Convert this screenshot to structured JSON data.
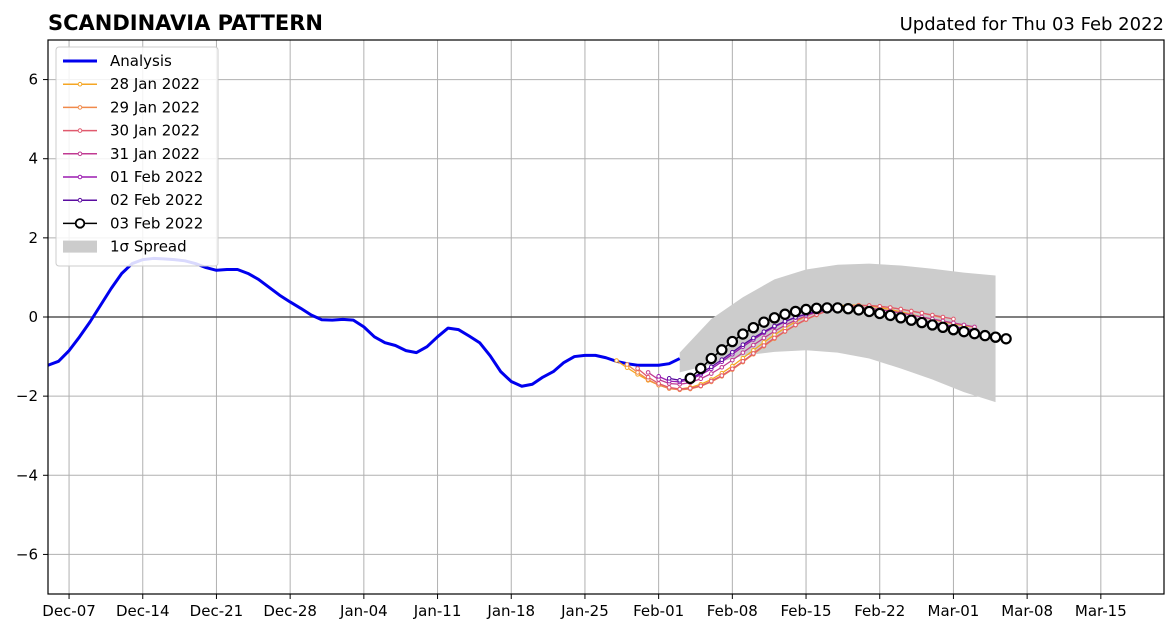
{
  "chart_data": {
    "type": "line",
    "title": "SCANDINAVIA PATTERN",
    "subtitle": "Updated for Thu 03 Feb 2022",
    "xlabel": "",
    "ylabel": "",
    "x_start": "2021-12-05",
    "x_end": "2022-03-21",
    "ylim": [
      -7,
      7
    ],
    "yticks": [
      -6,
      -4,
      -2,
      0,
      2,
      4,
      6
    ],
    "ytick_labels": [
      "−6",
      "−4",
      "−2",
      "0",
      "2",
      "4",
      "6"
    ],
    "xticks": [
      "2021-12-07",
      "2021-12-14",
      "2021-12-21",
      "2021-12-28",
      "2022-01-04",
      "2022-01-11",
      "2022-01-18",
      "2022-01-25",
      "2022-02-01",
      "2022-02-08",
      "2022-02-15",
      "2022-02-22",
      "2022-03-01",
      "2022-03-08",
      "2022-03-15"
    ],
    "xtick_labels": [
      "Dec-07",
      "Dec-14",
      "Dec-21",
      "Dec-28",
      "Jan-04",
      "Jan-11",
      "Jan-18",
      "Jan-25",
      "Feb-01",
      "Feb-08",
      "Feb-15",
      "Feb-22",
      "Mar-01",
      "Mar-08",
      "Mar-15"
    ],
    "grid": true,
    "legend_position": "top-left",
    "analysis": {
      "name": "Analysis",
      "color": "#0000ee",
      "x": [
        "2021-12-05",
        "2021-12-06",
        "2021-12-07",
        "2021-12-08",
        "2021-12-09",
        "2021-12-10",
        "2021-12-11",
        "2021-12-12",
        "2021-12-13",
        "2021-12-14",
        "2021-12-15",
        "2021-12-16",
        "2021-12-17",
        "2021-12-18",
        "2021-12-19",
        "2021-12-20",
        "2021-12-21",
        "2021-12-22",
        "2021-12-23",
        "2021-12-24",
        "2021-12-25",
        "2021-12-26",
        "2021-12-27",
        "2021-12-28",
        "2021-12-29",
        "2021-12-30",
        "2021-12-31",
        "2022-01-01",
        "2022-01-02",
        "2022-01-03",
        "2022-01-04",
        "2022-01-05",
        "2022-01-06",
        "2022-01-07",
        "2022-01-08",
        "2022-01-09",
        "2022-01-10",
        "2022-01-11",
        "2022-01-12",
        "2022-01-13",
        "2022-01-14",
        "2022-01-15",
        "2022-01-16",
        "2022-01-17",
        "2022-01-18",
        "2022-01-19",
        "2022-01-20",
        "2022-01-21",
        "2022-01-22",
        "2022-01-23",
        "2022-01-24",
        "2022-01-25",
        "2022-01-26",
        "2022-01-27",
        "2022-01-28",
        "2022-01-29",
        "2022-01-30",
        "2022-01-31",
        "2022-02-01",
        "2022-02-02",
        "2022-02-03"
      ],
      "values": [
        -1.22,
        -1.12,
        -0.85,
        -0.5,
        -0.12,
        0.3,
        0.72,
        1.1,
        1.35,
        1.45,
        1.48,
        1.47,
        1.45,
        1.42,
        1.35,
        1.25,
        1.18,
        1.2,
        1.2,
        1.1,
        0.95,
        0.75,
        0.55,
        0.38,
        0.22,
        0.05,
        -0.07,
        -0.08,
        -0.06,
        -0.08,
        -0.25,
        -0.5,
        -0.65,
        -0.72,
        -0.85,
        -0.9,
        -0.75,
        -0.5,
        -0.28,
        -0.32,
        -0.48,
        -0.65,
        -0.98,
        -1.38,
        -1.63,
        -1.75,
        -1.7,
        -1.52,
        -1.38,
        -1.15,
        -1.0,
        -0.97,
        -0.97,
        -1.03,
        -1.12,
        -1.18,
        -1.22,
        -1.22,
        -1.22,
        -1.18,
        -1.05
      ]
    },
    "spread": {
      "name": "1σ Spread",
      "x": [
        "2022-02-03",
        "2022-02-06",
        "2022-02-09",
        "2022-02-12",
        "2022-02-15",
        "2022-02-18",
        "2022-02-21",
        "2022-02-24",
        "2022-02-27",
        "2022-03-02",
        "2022-03-05"
      ],
      "upper": [
        -0.9,
        -0.05,
        0.5,
        0.95,
        1.2,
        1.32,
        1.35,
        1.3,
        1.22,
        1.12,
        1.05
      ],
      "lower": [
        -1.4,
        -1.2,
        -0.98,
        -0.88,
        -0.84,
        -0.9,
        -1.05,
        -1.3,
        -1.58,
        -1.9,
        -2.15
      ]
    },
    "series": [
      {
        "name": "28 Jan 2022",
        "color": "#f5a623",
        "start": "2022-01-28",
        "values": [
          -1.1,
          -1.28,
          -1.45,
          -1.6,
          -1.72,
          -1.8,
          -1.82,
          -1.78,
          -1.7,
          -1.58,
          -1.42,
          -1.24,
          -1.04,
          -0.84,
          -0.64,
          -0.45,
          -0.28,
          -0.12,
          0.02,
          0.13,
          0.22,
          0.28,
          0.3,
          0.3,
          0.28,
          0.24,
          0.19,
          0.13,
          0.07,
          0.0,
          -0.06,
          -0.12,
          -0.17,
          -0.22,
          -0.26
        ]
      },
      {
        "name": "29 Jan 2022",
        "color": "#f08a4b",
        "start": "2022-01-29",
        "values": [
          -1.2,
          -1.4,
          -1.58,
          -1.72,
          -1.81,
          -1.84,
          -1.82,
          -1.75,
          -1.64,
          -1.5,
          -1.33,
          -1.14,
          -0.94,
          -0.74,
          -0.55,
          -0.37,
          -0.21,
          -0.07,
          0.05,
          0.15,
          0.22,
          0.27,
          0.29,
          0.29,
          0.27,
          0.24,
          0.2,
          0.15,
          0.1,
          0.04,
          -0.02
        ]
      },
      {
        "name": "30 Jan 2022",
        "color": "#e05a6e",
        "start": "2022-01-30",
        "values": [
          -1.3,
          -1.52,
          -1.68,
          -1.78,
          -1.82,
          -1.8,
          -1.74,
          -1.62,
          -1.48,
          -1.31,
          -1.12,
          -0.92,
          -0.72,
          -0.53,
          -0.36,
          -0.2,
          -0.06,
          0.06,
          0.15,
          0.22,
          0.27,
          0.29,
          0.29,
          0.27,
          0.24,
          0.2,
          0.15,
          0.1,
          0.05,
          0.0,
          -0.05
        ]
      },
      {
        "name": "31 Jan 2022",
        "color": "#c03a92",
        "start": "2022-01-31",
        "values": [
          -1.4,
          -1.58,
          -1.68,
          -1.7,
          -1.66,
          -1.56,
          -1.43,
          -1.27,
          -1.09,
          -0.9,
          -0.71,
          -0.53,
          -0.36,
          -0.21,
          -0.08,
          0.03,
          0.12,
          0.18,
          0.22,
          0.24,
          0.24,
          0.22,
          0.19,
          0.15,
          0.1,
          0.05,
          0.0,
          -0.05,
          -0.1,
          -0.15,
          -0.2,
          -0.25
        ]
      },
      {
        "name": "01 Feb 2022",
        "color": "#9b1cb0",
        "start": "2022-02-01",
        "values": [
          -1.5,
          -1.62,
          -1.64,
          -1.58,
          -1.46,
          -1.31,
          -1.13,
          -0.94,
          -0.75,
          -0.57,
          -0.4,
          -0.25,
          -0.12,
          -0.01,
          0.08,
          0.14,
          0.18,
          0.2,
          0.2,
          0.18,
          0.15,
          0.11,
          0.06,
          0.01,
          -0.04,
          -0.09,
          -0.14,
          -0.19,
          -0.24,
          -0.29,
          -0.33
        ]
      },
      {
        "name": "02 Feb 2022",
        "color": "#5a0ca0",
        "start": "2022-02-02",
        "values": [
          -1.55,
          -1.6,
          -1.55,
          -1.42,
          -1.26,
          -1.08,
          -0.89,
          -0.7,
          -0.53,
          -0.37,
          -0.23,
          -0.11,
          -0.01,
          0.07,
          0.13,
          0.17,
          0.18,
          0.18,
          0.16,
          0.13,
          0.09,
          0.04,
          -0.01,
          -0.06,
          -0.12,
          -0.17,
          -0.22,
          -0.28,
          -0.33,
          -0.38,
          -0.43,
          -0.48
        ]
      },
      {
        "name": "03 Feb 2022",
        "color": "#000000",
        "start": "2022-02-04",
        "values": [
          -1.55,
          -1.3,
          -1.05,
          -0.83,
          -0.62,
          -0.43,
          -0.27,
          -0.13,
          -0.02,
          0.07,
          0.14,
          0.19,
          0.22,
          0.23,
          0.23,
          0.21,
          0.18,
          0.14,
          0.09,
          0.04,
          -0.02,
          -0.08,
          -0.14,
          -0.2,
          -0.26,
          -0.32,
          -0.37,
          -0.42,
          -0.47,
          -0.51,
          -0.55
        ]
      }
    ]
  }
}
